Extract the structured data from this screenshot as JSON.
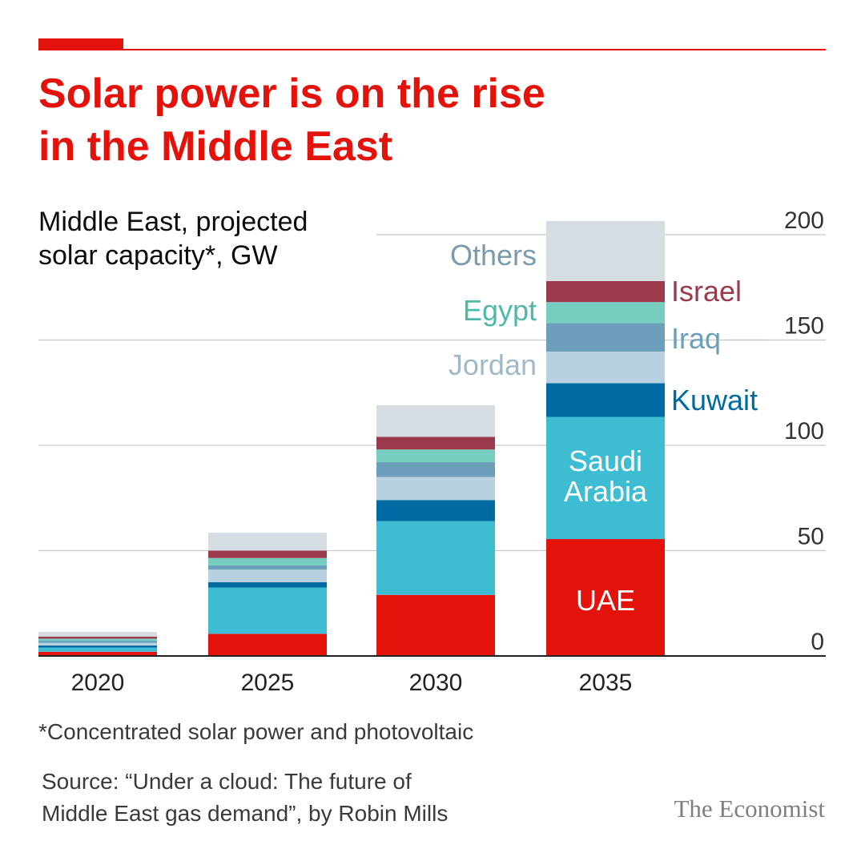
{
  "header": {
    "title_line1": "Solar power is on the rise",
    "title_line2": "in the Middle East",
    "subtitle_line1": "Middle East, projected",
    "subtitle_line2": "solar capacity*, GW"
  },
  "footer": {
    "footnote": "*Concentrated solar power and photovoltaic",
    "source_line1": "Source: “Under a cloud: The future of",
    "source_line2": "Middle East gas demand”, by Robin Mills",
    "brand": "The Economist"
  },
  "chart_data": {
    "type": "bar",
    "stacked": true,
    "categories": [
      "2020",
      "2025",
      "2030",
      "2035"
    ],
    "ylim": [
      0,
      200
    ],
    "yticks": [
      0,
      50,
      100,
      150,
      200
    ],
    "grid": true,
    "series": [
      {
        "name": "UAE",
        "color": "#e3120b",
        "values": [
          2,
          10.5,
          29,
          55.5
        ]
      },
      {
        "name": "Saudi Arabia",
        "color": "#3ebcd2",
        "values": [
          2,
          22,
          35,
          58
        ]
      },
      {
        "name": "Kuwait",
        "color": "#006ba2",
        "values": [
          1,
          2.5,
          10,
          16
        ]
      },
      {
        "name": "Jordan",
        "color": "#b8d1e0",
        "values": [
          1.2,
          6,
          11,
          15
        ]
      },
      {
        "name": "Iraq",
        "color": "#6b9fba",
        "values": [
          1,
          2,
          7,
          13.5
        ]
      },
      {
        "name": "Egypt",
        "color": "#78cdc1",
        "values": [
          1,
          3.5,
          6,
          10
        ]
      },
      {
        "name": "Israel",
        "color": "#9a3a4c",
        "values": [
          1,
          3.5,
          6,
          10
        ]
      },
      {
        "name": "Others",
        "color": "#d5dde2",
        "values": [
          2.2,
          8.5,
          15,
          28.5
        ]
      }
    ],
    "labels": {
      "others": "Others",
      "israel": "Israel",
      "egypt": "Egypt",
      "iraq": "Iraq",
      "jordan": "Jordan",
      "kuwait": "Kuwait",
      "saudi_line1": "Saudi",
      "saudi_line2": "Arabia",
      "uae": "UAE"
    }
  }
}
